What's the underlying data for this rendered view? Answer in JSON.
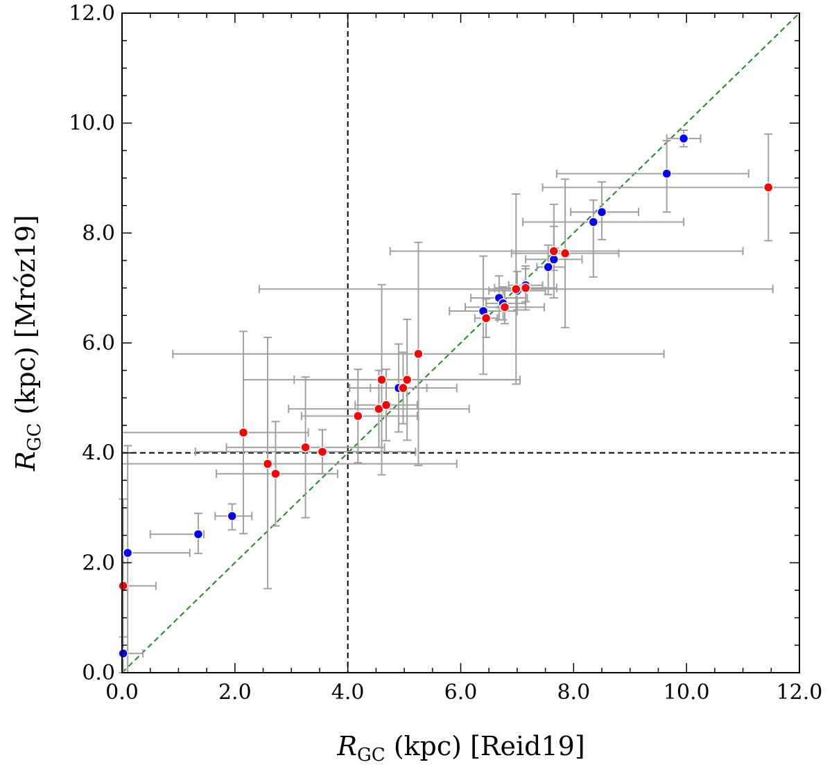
{
  "chart_data": {
    "type": "scatter",
    "title": "",
    "xlabel": {
      "symbol": "R",
      "subscript": "GC",
      "text": " (kpc) [Reid19]"
    },
    "ylabel": {
      "symbol": "R",
      "subscript": "GC",
      "text": " (kpc) [Mróz19]"
    },
    "xlim": [
      0,
      12
    ],
    "ylim": [
      0,
      12
    ],
    "xticks": [
      "0.0",
      "2.0",
      "4.0",
      "6.0",
      "8.0",
      "10.0",
      "12.0"
    ],
    "yticks": [
      "0.0",
      "2.0",
      "4.0",
      "6.0",
      "8.0",
      "10.0",
      "12.0"
    ],
    "grid": false,
    "reference_lines": [
      {
        "name": "one-to-one",
        "kind": "diagonal",
        "color": "#1a8a1a",
        "style": "dashed"
      },
      {
        "name": "x-equals-4",
        "kind": "vertical",
        "value": 4.0,
        "color": "#000000",
        "style": "dashed"
      },
      {
        "name": "y-equals-4",
        "kind": "horizontal",
        "value": 4.0,
        "color": "#000000",
        "style": "dashed"
      }
    ],
    "series": [
      {
        "name": "blue",
        "color": "#0000ff",
        "points": [
          {
            "x": 0.02,
            "y": 0.35,
            "xerr": [
              0.02,
              0.35
            ],
            "yerr": [
              0.35,
              0.3
            ]
          },
          {
            "x": 0.1,
            "y": 2.18,
            "xerr": [
              0.1,
              1.1
            ],
            "yerr": [
              2.18,
              1.95
            ]
          },
          {
            "x": 1.35,
            "y": 2.52,
            "xerr": [
              0.85,
              0.1
            ],
            "yerr": [
              0.35,
              0.38
            ]
          },
          {
            "x": 1.95,
            "y": 2.85,
            "xerr": [
              0.3,
              0.35
            ],
            "yerr": [
              0.25,
              0.22
            ]
          },
          {
            "x": 4.9,
            "y": 5.18,
            "xerr": [
              0.5,
              0.5
            ],
            "yerr": [
              0.8,
              0.8
            ]
          },
          {
            "x": 6.4,
            "y": 6.58,
            "xerr": [
              0.6,
              0.6
            ],
            "yerr": [
              1.15,
              1.0
            ]
          },
          {
            "x": 6.68,
            "y": 6.82,
            "xerr": [
              0.5,
              0.5
            ],
            "yerr": [
              0.4,
              0.4
            ]
          },
          {
            "x": 6.75,
            "y": 6.72,
            "xerr": [
              0.3,
              0.4
            ],
            "yerr": [
              0.3,
              0.3
            ]
          },
          {
            "x": 7.0,
            "y": 6.95,
            "xerr": [
              0.5,
              0.5
            ],
            "yerr": [
              0.35,
              0.35
            ]
          },
          {
            "x": 7.15,
            "y": 7.05,
            "xerr": [
              0.3,
              0.3
            ],
            "yerr": [
              0.3,
              0.3
            ]
          },
          {
            "x": 7.55,
            "y": 7.38,
            "xerr": [
              0.2,
              0.3
            ],
            "yerr": [
              0.5,
              0.4
            ]
          },
          {
            "x": 7.65,
            "y": 7.52,
            "xerr": [
              0.5,
              0.5
            ],
            "yerr": [
              0.2,
              0.6
            ]
          },
          {
            "x": 8.35,
            "y": 8.2,
            "xerr": [
              1.25,
              1.6
            ],
            "yerr": [
              1.0,
              0.4
            ]
          },
          {
            "x": 8.5,
            "y": 8.38,
            "xerr": [
              0.55,
              0.65
            ],
            "yerr": [
              0.5,
              0.55
            ]
          },
          {
            "x": 9.65,
            "y": 9.08,
            "xerr": [
              1.95,
              1.45
            ],
            "yerr": [
              0.7,
              0.6
            ]
          },
          {
            "x": 9.95,
            "y": 9.72,
            "xerr": [
              0.3,
              0.3
            ],
            "yerr": [
              0.15,
              0.15
            ]
          }
        ]
      },
      {
        "name": "red",
        "color": "#ff0000",
        "points": [
          {
            "x": 0.02,
            "y": 1.58,
            "xerr": [
              0.02,
              0.58
            ],
            "yerr": [
              1.58,
              1.58
            ]
          },
          {
            "x": 2.15,
            "y": 4.37,
            "xerr": [
              2.15,
              1.15
            ],
            "yerr": [
              1.84,
              1.84
            ]
          },
          {
            "x": 2.58,
            "y": 3.8,
            "xerr": [
              2.58,
              3.35
            ],
            "yerr": [
              2.27,
              2.3
            ]
          },
          {
            "x": 2.72,
            "y": 3.62,
            "xerr": [
              1.05,
              1.1
            ],
            "yerr": [
              0.95,
              0.95
            ]
          },
          {
            "x": 3.25,
            "y": 4.1,
            "xerr": [
              1.4,
              1.4
            ],
            "yerr": [
              1.28,
              1.28
            ]
          },
          {
            "x": 3.55,
            "y": 4.02,
            "xerr": [
              2.25,
              1.65
            ],
            "yerr": [
              0.4,
              0.4
            ]
          },
          {
            "x": 4.18,
            "y": 4.67,
            "xerr": [
              1.0,
              1.05
            ],
            "yerr": [
              0.85,
              0.85
            ]
          },
          {
            "x": 4.55,
            "y": 4.8,
            "xerr": [
              1.6,
              1.6
            ],
            "yerr": [
              0.7,
              0.7
            ]
          },
          {
            "x": 4.6,
            "y": 5.33,
            "xerr": [
              2.45,
              2.45
            ],
            "yerr": [
              1.73,
              1.73
            ]
          },
          {
            "x": 4.68,
            "y": 4.87,
            "xerr": [
              0.55,
              0.55
            ],
            "yerr": [
              0.65,
              0.65
            ]
          },
          {
            "x": 4.98,
            "y": 5.18,
            "xerr": [
              0.95,
              0.95
            ],
            "yerr": [
              0.65,
              0.65
            ]
          },
          {
            "x": 5.05,
            "y": 5.33,
            "xerr": [
              2.0,
              2.0
            ],
            "yerr": [
              1.1,
              1.1
            ]
          },
          {
            "x": 5.25,
            "y": 5.8,
            "xerr": [
              4.35,
              4.35
            ],
            "yerr": [
              2.03,
              2.03
            ]
          },
          {
            "x": 6.45,
            "y": 6.45,
            "xerr": [
              0.2,
              0.2
            ],
            "yerr": [
              0.35,
              0.35
            ]
          },
          {
            "x": 6.78,
            "y": 6.65,
            "xerr": [
              0.7,
              0.7
            ],
            "yerr": [
              0.3,
              0.3
            ]
          },
          {
            "x": 6.98,
            "y": 6.98,
            "xerr": [
              4.55,
              4.55
            ],
            "yerr": [
              1.73,
              1.73
            ]
          },
          {
            "x": 7.15,
            "y": 7.0,
            "xerr": [
              0.55,
              0.55
            ],
            "yerr": [
              0.4,
              0.4
            ]
          },
          {
            "x": 7.65,
            "y": 7.67,
            "xerr": [
              2.9,
              3.35
            ],
            "yerr": [
              0.85,
              0.85
            ]
          },
          {
            "x": 7.85,
            "y": 7.63,
            "xerr": [
              0.95,
              0.95
            ],
            "yerr": [
              1.35,
              1.35
            ]
          },
          {
            "x": 11.45,
            "y": 8.83,
            "xerr": [
              4.0,
              0.6
            ],
            "yerr": [
              0.97,
              0.97
            ]
          }
        ]
      }
    ]
  }
}
